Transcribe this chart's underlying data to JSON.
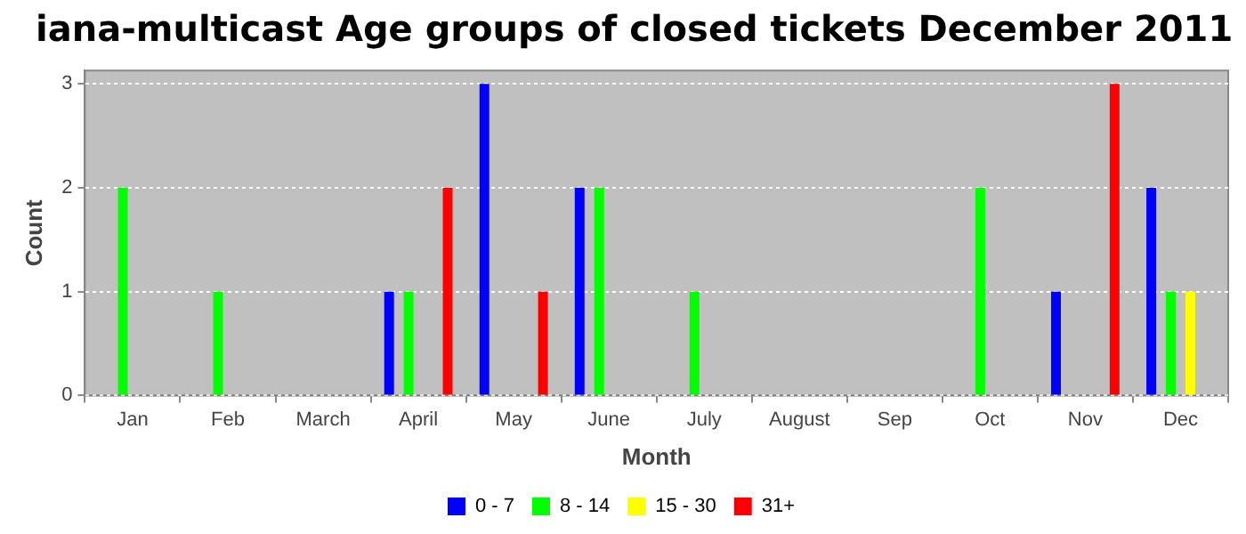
{
  "chart_data": {
    "type": "bar",
    "title": "iana-multicast Age groups of closed tickets December 2011",
    "xlabel": "Month",
    "ylabel": "Count",
    "categories": [
      "Jan",
      "Feb",
      "March",
      "April",
      "May",
      "June",
      "July",
      "August",
      "Sep",
      "Oct",
      "Nov",
      "Dec"
    ],
    "series": [
      {
        "name": "0 - 7",
        "color": "#0000ff",
        "values": [
          0,
          0,
          0,
          1,
          3,
          2,
          0,
          0,
          0,
          0,
          1,
          2
        ]
      },
      {
        "name": "8 - 14",
        "color": "#00ff00",
        "values": [
          2,
          1,
          0,
          1,
          0,
          2,
          1,
          0,
          0,
          2,
          0,
          1
        ]
      },
      {
        "name": "15 - 30",
        "color": "#ffff00",
        "values": [
          0,
          0,
          0,
          0,
          0,
          0,
          0,
          0,
          0,
          0,
          0,
          1
        ]
      },
      {
        "name": "31+",
        "color": "#ff0000",
        "values": [
          0,
          0,
          0,
          2,
          1,
          0,
          0,
          0,
          0,
          0,
          3,
          0
        ]
      }
    ],
    "ylim": [
      0,
      3.13
    ],
    "yticks": [
      0,
      1,
      2,
      3
    ],
    "grid": "y",
    "legend": "bottom"
  }
}
